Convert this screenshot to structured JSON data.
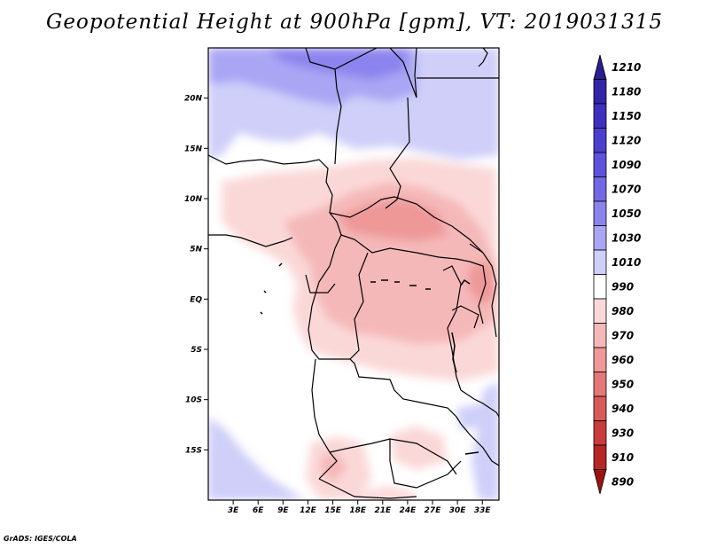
{
  "title": "Geopotential Height at 900hPa [gpm], VT: 2019031315",
  "credit": "GrADS: IGES/COLA",
  "map": {
    "lat_ticks": [
      "20N",
      "15N",
      "10N",
      "5N",
      "EQ",
      "5S",
      "10S",
      "15S"
    ],
    "lon_ticks": [
      "3E",
      "6E",
      "9E",
      "12E",
      "15E",
      "18E",
      "21E",
      "24E",
      "27E",
      "30E",
      "33E"
    ],
    "lon_range": [
      0,
      35
    ],
    "lat_range": [
      -20,
      25
    ],
    "colorbar": {
      "levels": [
        "1210",
        "1180",
        "1150",
        "1120",
        "1090",
        "1070",
        "1050",
        "1030",
        "1010",
        "990",
        "980",
        "970",
        "960",
        "950",
        "940",
        "930",
        "910",
        "890"
      ],
      "colors": [
        "#2a1d8f",
        "#3424a8",
        "#3f2fc0",
        "#4b3fd0",
        "#5c52dc",
        "#7268e6",
        "#8c84ee",
        "#aaa6f4",
        "#cfcff9",
        "#ffffff",
        "#fbd8d8",
        "#f5b8b8",
        "#ee9898",
        "#e47878",
        "#d85a5a",
        "#c93c3c",
        "#b82525",
        "#9e1212"
      ]
    }
  }
}
